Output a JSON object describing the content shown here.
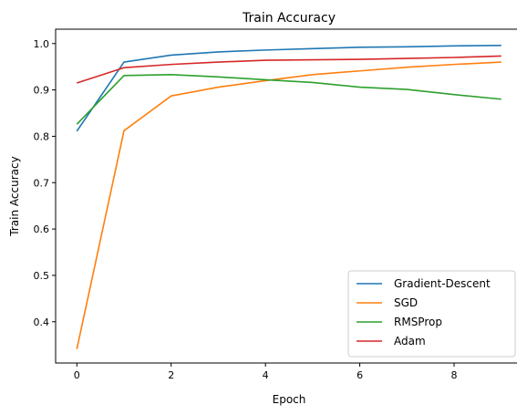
{
  "chart_data": {
    "type": "line",
    "title": "Train Accuracy",
    "xlabel": "Epoch",
    "ylabel": "Train Accuracy",
    "x": [
      0,
      1,
      2,
      3,
      4,
      5,
      6,
      7,
      8,
      9
    ],
    "xlim": [
      -0.45,
      9.45
    ],
    "ylim": [
      0.311,
      1.031
    ],
    "xticks": [
      0,
      2,
      4,
      6,
      8
    ],
    "xtick_labels": [
      "0",
      "2",
      "4",
      "6",
      "8"
    ],
    "yticks": [
      0.4,
      0.5,
      0.6,
      0.7,
      0.8,
      0.9,
      1.0
    ],
    "ytick_labels": [
      "0.4",
      "0.5",
      "0.6",
      "0.7",
      "0.8",
      "0.9",
      "1.0"
    ],
    "grid": false,
    "legend_position": "lower-right",
    "series": [
      {
        "name": "Gradient-Descent",
        "color": "#1f77b4",
        "values": [
          0.811,
          0.96,
          0.975,
          0.982,
          0.986,
          0.989,
          0.992,
          0.993,
          0.995,
          0.996
        ]
      },
      {
        "name": "SGD",
        "color": "#ff7f0e",
        "values": [
          0.341,
          0.812,
          0.887,
          0.906,
          0.92,
          0.933,
          0.941,
          0.949,
          0.955,
          0.96
        ]
      },
      {
        "name": "RMSProp",
        "color": "#2ca02c",
        "values": [
          0.826,
          0.931,
          0.933,
          0.928,
          0.922,
          0.916,
          0.906,
          0.901,
          0.89,
          0.88
        ]
      },
      {
        "name": "Adam",
        "color": "#d62728",
        "values": [
          0.915,
          0.948,
          0.955,
          0.96,
          0.964,
          0.965,
          0.966,
          0.968,
          0.97,
          0.973
        ]
      }
    ]
  }
}
